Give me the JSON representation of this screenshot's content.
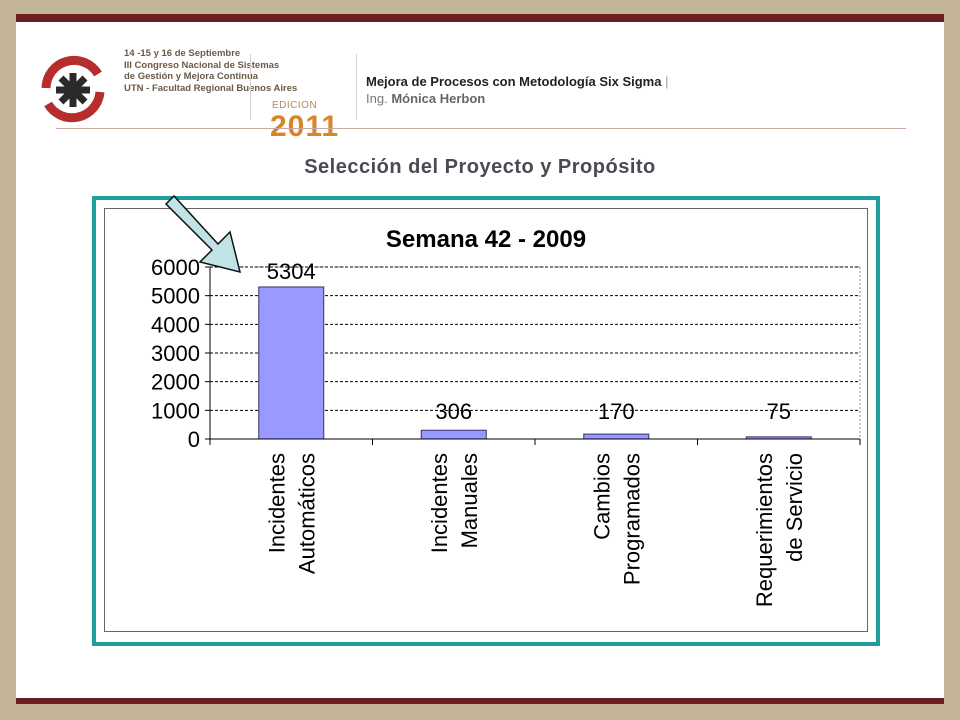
{
  "header": {
    "congress_lines": [
      "14 -15 y 16 de Septiembre",
      "III Congreso Nacional de Sistemas",
      "de Gestión y Mejora Continua",
      "UTN - Facultad Regional Buenos Aires"
    ],
    "edition_label": "EDICION",
    "edition_year": "2011",
    "title": "Mejora de Procesos con Metodología Six Sigma",
    "separator": "|",
    "author_prefix": "Ing.",
    "author_name": "Mónica Herbon"
  },
  "slide_title": "Selección del Proyecto y Propósito",
  "chart_data": {
    "type": "bar",
    "title": "Semana 42 - 2009",
    "categories": [
      [
        "Incidentes",
        "Automáticos"
      ],
      [
        "Incidentes",
        "Manuales"
      ],
      [
        "Cambios",
        "Programados"
      ],
      [
        "Requerimientos",
        "de Servicio"
      ]
    ],
    "values": [
      5304,
      306,
      170,
      75
    ],
    "data_labels": [
      "5304",
      "306",
      "170",
      "75"
    ],
    "yticks": [
      0,
      1000,
      2000,
      3000,
      4000,
      5000,
      6000
    ],
    "ylim": [
      0,
      6000
    ],
    "grid": true,
    "bar_color": "#9999ff",
    "bar_border": "#333366",
    "annotation": "arrow pointing to first bar",
    "arrow_color": "#bfe3e6"
  },
  "colors": {
    "frame": "#1f9e9e",
    "top_bar": "#6b1f1f",
    "background": "#c4b496"
  }
}
